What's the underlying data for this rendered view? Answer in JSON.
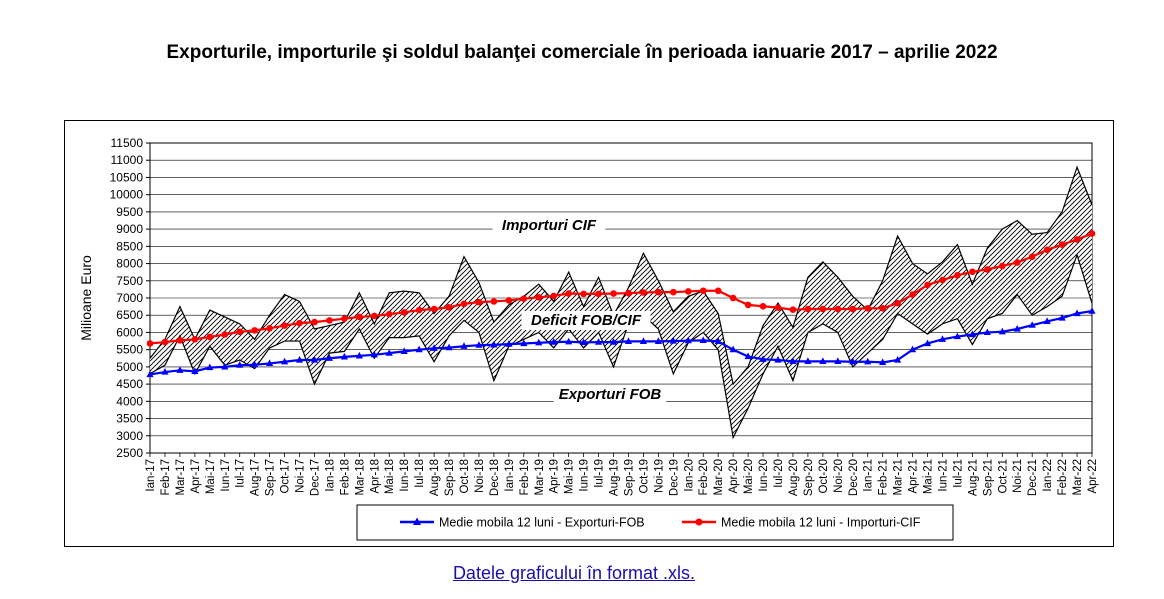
{
  "header": {
    "title": "Exporturile, importurile şi soldul balanţei comerciale în perioada ianuarie 2017 – aprilie 2022"
  },
  "link": {
    "text": "Datele graficului în format .xls."
  },
  "chart_data": {
    "type": "line",
    "title": "",
    "ylabel": "Milioane Euro",
    "xlabel": "",
    "ylim": [
      2500,
      11500
    ],
    "yticks": [
      2500,
      3000,
      3500,
      4000,
      4500,
      5000,
      5500,
      6000,
      6500,
      7000,
      7500,
      8000,
      8500,
      9000,
      9500,
      10000,
      10500,
      11000,
      11500
    ],
    "grid": true,
    "legend_position": "bottom",
    "annotations": [
      "Importuri CIF",
      "Deficit FOB/CIF",
      "Exporturi FOB"
    ],
    "categories": [
      "Ian-17",
      "Feb-17",
      "Mar-17",
      "Apr-17",
      "Mai-17",
      "Iun-17",
      "Iul-17",
      "Aug-17",
      "Sep-17",
      "Oct-17",
      "Noi-17",
      "Dec-17",
      "Ian-18",
      "Feb-18",
      "Mar-18",
      "Apr-18",
      "Mai-18",
      "Iun-18",
      "Iul-18",
      "Aug-18",
      "Sep-18",
      "Oct-18",
      "Noi-18",
      "Dec-18",
      "Ian-19",
      "Feb-19",
      "Mar-19",
      "Apr-19",
      "Mai-19",
      "Iun-19",
      "Iul-19",
      "Aug-19",
      "Sep-19",
      "Oct-19",
      "Noi-19",
      "Dec-19",
      "Ian-20",
      "Feb-20",
      "Mar-20",
      "Apr-20",
      "Mai-20",
      "Iun-20",
      "Iul-20",
      "Aug-20",
      "Sep-20",
      "Oct-20",
      "Noi-20",
      "Dec-20",
      "Ian-21",
      "Feb-21",
      "Mar-21",
      "Apr-21",
      "Mai-21",
      "Iun-21",
      "Iul-21",
      "Aug-21",
      "Sep-21",
      "Oct-21",
      "Noi-21",
      "Dec-21",
      "Ian-22",
      "Feb-22",
      "Mar-22",
      "Apr-22"
    ],
    "series": [
      {
        "name": "Importuri CIF",
        "role": "band-upper",
        "color": "#000000",
        "values": [
          5250,
          5800,
          6750,
          5800,
          6650,
          6450,
          6250,
          5800,
          6500,
          7100,
          6900,
          6100,
          6200,
          6300,
          7150,
          6250,
          7150,
          7200,
          7150,
          6550,
          7050,
          8200,
          7450,
          6300,
          6800,
          7050,
          7400,
          6900,
          7750,
          6750,
          7600,
          6500,
          7300,
          8300,
          7500,
          6600,
          7050,
          7200,
          6550,
          4500,
          5000,
          6200,
          6850,
          6150,
          7600,
          8050,
          7600,
          7050,
          6650,
          7500,
          8800,
          8000,
          7700,
          8050,
          8550,
          7400,
          8450,
          9000,
          9250,
          8850,
          8900,
          9500,
          10800,
          9700
        ]
      },
      {
        "name": "Exporturi FOB",
        "role": "band-lower",
        "color": "#000000",
        "values": [
          4800,
          5050,
          5900,
          4800,
          5600,
          5050,
          5200,
          4950,
          5550,
          5750,
          5750,
          4500,
          5400,
          5450,
          6100,
          5250,
          5850,
          5850,
          5900,
          5150,
          5900,
          6350,
          6000,
          4600,
          5600,
          5800,
          6000,
          5550,
          6100,
          5550,
          6000,
          5000,
          6250,
          6500,
          6100,
          4800,
          5700,
          6000,
          5500,
          2950,
          3800,
          4800,
          5600,
          4600,
          6000,
          6250,
          6000,
          5000,
          5400,
          5800,
          6550,
          6250,
          5950,
          6250,
          6400,
          5650,
          6400,
          6550,
          7100,
          6500,
          6750,
          7050,
          8250,
          6850
        ]
      },
      {
        "name": "Medie mobila 12 luni - Exporturi-FOB",
        "role": "line",
        "color": "#0000ff",
        "marker": "triangle",
        "values": [
          4780,
          4850,
          4900,
          4870,
          4980,
          5000,
          5050,
          5060,
          5100,
          5150,
          5200,
          5200,
          5250,
          5290,
          5320,
          5350,
          5400,
          5450,
          5500,
          5540,
          5560,
          5600,
          5630,
          5640,
          5660,
          5680,
          5700,
          5720,
          5730,
          5710,
          5720,
          5720,
          5740,
          5740,
          5740,
          5750,
          5760,
          5770,
          5740,
          5500,
          5300,
          5220,
          5200,
          5160,
          5160,
          5160,
          5160,
          5150,
          5150,
          5130,
          5200,
          5500,
          5680,
          5800,
          5880,
          5940,
          6000,
          6020,
          6100,
          6210,
          6320,
          6420,
          6550,
          6620
        ]
      },
      {
        "name": "Medie mobila 12 luni - Importuri-CIF",
        "role": "line",
        "color": "#ff0000",
        "marker": "circle",
        "values": [
          5680,
          5720,
          5770,
          5800,
          5870,
          5940,
          6020,
          6060,
          6120,
          6200,
          6270,
          6300,
          6350,
          6400,
          6450,
          6480,
          6530,
          6580,
          6650,
          6680,
          6730,
          6830,
          6880,
          6900,
          6930,
          6980,
          7020,
          7060,
          7130,
          7120,
          7120,
          7130,
          7140,
          7160,
          7170,
          7170,
          7190,
          7210,
          7210,
          7000,
          6800,
          6760,
          6720,
          6660,
          6680,
          6680,
          6680,
          6680,
          6700,
          6700,
          6850,
          7100,
          7380,
          7520,
          7660,
          7760,
          7830,
          7930,
          8030,
          8200,
          8400,
          8550,
          8700,
          8870
        ]
      }
    ]
  }
}
